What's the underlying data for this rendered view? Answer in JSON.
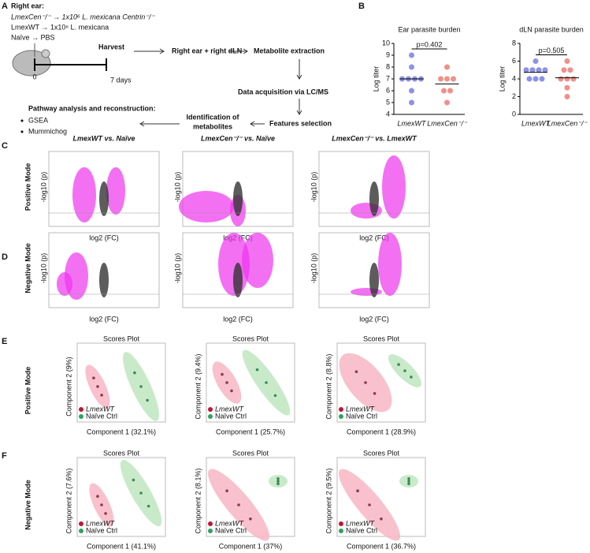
{
  "panel_labels": [
    "A",
    "B",
    "C",
    "D",
    "E",
    "F"
  ],
  "panel_a": {
    "infection_title": "Right ear:",
    "groups": [
      "LmexCen⁻/⁻ → 1x10⁶ L. mexicana Centrin⁻/⁻",
      "LmexWT → 1x10⁶ L. mexicana",
      "Naïve → PBS"
    ],
    "timeline": [
      "0",
      "7 days"
    ],
    "steps": [
      "Harvest",
      "Right ear + right dLN",
      "Metabolite extraction",
      "Data acquisition via LC/MS",
      "Features selection",
      "Identification of",
      "metabolites",
      "Pathway analysis and reconstruction:"
    ],
    "tools": [
      "GSEA",
      "Mummichog"
    ]
  },
  "chart_data": [
    {
      "type": "strip",
      "title": "Ear parasite burden",
      "y_label": "Log titer",
      "annotation": "p=0.402",
      "ylim": [
        4,
        10
      ],
      "yticks": [
        4,
        5,
        6,
        7,
        8,
        9,
        10
      ],
      "groups": [
        {
          "label": "LmexWT",
          "color": "#8d92e6",
          "values": [
            9,
            8,
            7,
            7,
            7,
            7,
            6,
            5
          ]
        },
        {
          "label": "LmexCen⁻/⁻",
          "color": "#f0908a",
          "values": [
            8,
            7,
            7,
            7,
            6,
            6,
            5
          ]
        }
      ]
    },
    {
      "type": "strip",
      "title": "dLN parasite burden",
      "y_label": "Log titer",
      "annotation": "p=0.505",
      "ylim": [
        0,
        8
      ],
      "yticks": [
        0,
        2,
        4,
        6,
        8
      ],
      "groups": [
        {
          "label": "LmexWT",
          "color": "#8d92e6",
          "values": [
            6,
            5,
            5,
            5,
            5,
            4,
            4,
            4
          ]
        },
        {
          "label": "LmexCen⁻/⁻",
          "color": "#f0908a",
          "values": [
            6,
            5,
            5,
            4,
            4,
            4,
            3,
            2
          ]
        }
      ]
    }
  ],
  "volcano": {
    "columns": [
      "LmexWT vs. Naïve",
      "LmexCen⁻/⁻ vs. Naïve",
      "LmexCen⁻/⁻ vs. LmexWT"
    ],
    "rows": [
      "Positive Mode",
      "Negative Mode"
    ],
    "y_label": "-log10 (p)",
    "x_label": "log2 (FC)"
  },
  "scores": {
    "title": "Scores Plot",
    "rows": [
      "Positive Mode",
      "Negative Mode"
    ],
    "legend": [
      "LmexWT",
      "Naïve Ctrl"
    ],
    "plots": [
      {
        "y_label": "Component 2 (9%)",
        "x_label": "Component 1 (32.1%)"
      },
      {
        "y_label": "Component 2 (9.4%)",
        "x_label": "Component 1 (25.7%)"
      },
      {
        "y_label": "Component 2 (8.8%)",
        "x_label": "Component 1 (28.9%)"
      },
      {
        "y_label": "Component 2 (7.6%)",
        "x_label": "Component 1 (41.1%)"
      },
      {
        "y_label": "Component 2 (8.1%)",
        "x_label": "Component 1 (37%)"
      },
      {
        "y_label": "Component 2 (9.5%)",
        "x_label": "Component 1 (36.7%)"
      }
    ]
  }
}
